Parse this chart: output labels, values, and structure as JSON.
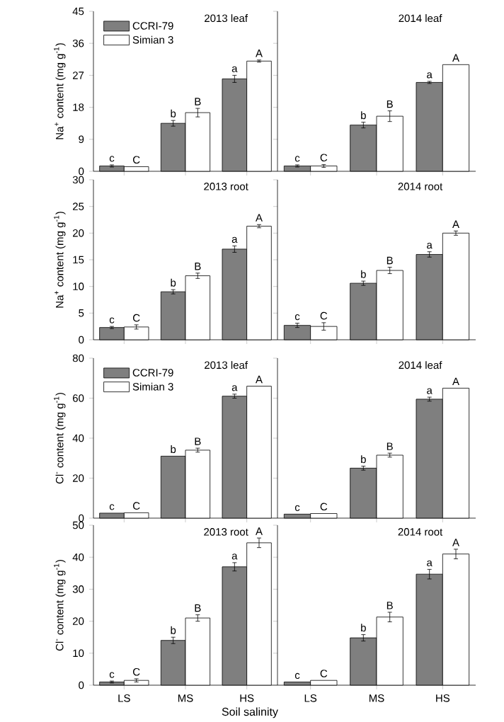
{
  "chart_data": [
    {
      "type": "bar",
      "title": "2013  leaf",
      "ylabel": "Na$^{+}$ content (mg g$^{-1}$)",
      "categories": [
        "LS",
        "MS",
        "HS"
      ],
      "legend": "top left",
      "tick_labels": "y",
      "ylim": [
        0,
        45
      ],
      "yticks": [
        0,
        9,
        18,
        27,
        36,
        45
      ],
      "series": [
        {
          "name": "CCRI-79",
          "color": "#7f7f7f",
          "values": [
            1.5,
            13.5,
            26
          ],
          "errors": [
            0.3,
            0.8,
            1.0
          ]
        },
        {
          "name": "Simian 3",
          "color": "#ffffff",
          "values": [
            1.3,
            16.5,
            31
          ],
          "errors": [
            null,
            1.2,
            0.3
          ]
        }
      ],
      "annotations": [
        {
          "text": "c",
          "x": "LS",
          "y": 1.5
        },
        {
          "text": "C",
          "x": "LS",
          "y": 1.3
        },
        {
          "text": "b",
          "x": "MS",
          "y": 13.5
        },
        {
          "text": "B",
          "x": "MS",
          "y": 16.5
        },
        {
          "text": "a",
          "x": "HS",
          "y": 26
        },
        {
          "text": "A",
          "x": "HS",
          "y": 31
        }
      ]
    },
    {
      "type": "bar",
      "title": "2014  leaf",
      "categories": [
        "LS",
        "MS",
        "HS"
      ],
      "tick_labels": false,
      "ylim": [
        0,
        45
      ],
      "yticks": [
        0,
        9,
        18,
        27,
        36,
        45
      ],
      "series": [
        {
          "color": "#7f7f7f",
          "values": [
            1.5,
            13,
            25
          ],
          "errors": [
            0.3,
            0.8,
            0.3
          ]
        },
        {
          "color": "#ffffff",
          "values": [
            1.5,
            15.5,
            30
          ],
          "errors": [
            0.4,
            1.5,
            null
          ]
        }
      ],
      "annotations": [
        {
          "text": "c",
          "x": "LS",
          "y": 1.5
        },
        {
          "text": "C",
          "x": "LS",
          "y": 1.5
        },
        {
          "text": "b",
          "x": "MS",
          "y": 13
        },
        {
          "text": "B",
          "x": "MS",
          "y": 15.5
        },
        {
          "text": "a",
          "x": "HS",
          "y": 25
        },
        {
          "text": "A",
          "x": "HS",
          "y": 30
        }
      ]
    },
    {
      "type": "bar",
      "title": "2013  root",
      "ylabel": "Na$^{+}$ content (mg g$^{-1}$)",
      "categories": [
        "LS",
        "MS",
        "HS"
      ],
      "tick_labels": "y",
      "ylim": [
        0,
        30
      ],
      "yticks": [
        0,
        5,
        10,
        15,
        20,
        25,
        30
      ],
      "series": [
        {
          "color": "#7f7f7f",
          "values": [
            2.3,
            9,
            17
          ],
          "errors": [
            0.2,
            0.4,
            0.6
          ]
        },
        {
          "color": "#ffffff",
          "values": [
            2.4,
            12,
            21.3
          ],
          "errors": [
            0.4,
            0.5,
            0.3
          ]
        }
      ],
      "annotations": [
        {
          "text": "c",
          "x": "LS",
          "y": 2.3
        },
        {
          "text": "C",
          "x": "LS",
          "y": 2.4
        },
        {
          "text": "b",
          "x": "MS",
          "y": 9
        },
        {
          "text": "B",
          "x": "MS",
          "y": 12
        },
        {
          "text": "a",
          "x": "HS",
          "y": 17
        },
        {
          "text": "A",
          "x": "HS",
          "y": 21.3
        }
      ]
    },
    {
      "type": "bar",
      "title": "2014  root",
      "categories": [
        "LS",
        "MS",
        "HS"
      ],
      "tick_labels": false,
      "ylim": [
        0,
        30
      ],
      "yticks": [
        0,
        5,
        10,
        15,
        20,
        25,
        30
      ],
      "series": [
        {
          "color": "#7f7f7f",
          "values": [
            2.7,
            10.6,
            16
          ],
          "errors": [
            0.4,
            0.4,
            0.5
          ]
        },
        {
          "color": "#ffffff",
          "values": [
            2.5,
            13,
            20
          ],
          "errors": [
            0.7,
            0.6,
            0.4
          ]
        }
      ],
      "annotations": [
        {
          "text": "c",
          "x": "LS",
          "y": 2.7
        },
        {
          "text": "C",
          "x": "LS",
          "y": 2.5
        },
        {
          "text": "b",
          "x": "MS",
          "y": 10.6
        },
        {
          "text": "B",
          "x": "MS",
          "y": 13
        },
        {
          "text": "a",
          "x": "HS",
          "y": 16
        },
        {
          "text": "A",
          "x": "HS",
          "y": 20
        }
      ]
    },
    {
      "type": "bar",
      "title": "2013  leaf",
      "ylabel": "Cl$^{-}$ content (mg g$^{-1}$)",
      "categories": [
        "LS",
        "MS",
        "HS"
      ],
      "legend": "top left",
      "tick_labels": "y",
      "ylim": [
        0,
        80
      ],
      "yticks": [
        0,
        20,
        40,
        60,
        80
      ],
      "series": [
        {
          "name": "CCRI-79",
          "color": "#7f7f7f",
          "values": [
            2.5,
            31,
            61
          ],
          "errors": [
            null,
            null,
            1
          ]
        },
        {
          "name": "Simian 3",
          "color": "#ffffff",
          "values": [
            2.7,
            34,
            66
          ],
          "errors": [
            null,
            1,
            null
          ]
        }
      ],
      "annotations": [
        {
          "text": "c",
          "x": "LS",
          "y": 2.5
        },
        {
          "text": "C",
          "x": "LS",
          "y": 2.7
        },
        {
          "text": "b",
          "x": "MS",
          "y": 31
        },
        {
          "text": "B",
          "x": "MS",
          "y": 34
        },
        {
          "text": "a",
          "x": "HS",
          "y": 61
        },
        {
          "text": "A",
          "x": "HS",
          "y": 66
        }
      ]
    },
    {
      "type": "bar",
      "title": "2014  leaf",
      "categories": [
        "LS",
        "MS",
        "HS"
      ],
      "tick_labels": false,
      "ylim": [
        0,
        80
      ],
      "yticks": [
        0,
        20,
        40,
        60,
        80
      ],
      "series": [
        {
          "color": "#7f7f7f",
          "values": [
            2,
            25,
            59.5
          ],
          "errors": [
            null,
            1,
            1
          ]
        },
        {
          "color": "#ffffff",
          "values": [
            2.3,
            31.5,
            65
          ],
          "errors": [
            null,
            1,
            null
          ]
        }
      ],
      "annotations": [
        {
          "text": "c",
          "x": "LS",
          "y": 2
        },
        {
          "text": "C",
          "x": "LS",
          "y": 2.3
        },
        {
          "text": "b",
          "x": "MS",
          "y": 25
        },
        {
          "text": "B",
          "x": "MS",
          "y": 31.5
        },
        {
          "text": "a",
          "x": "HS",
          "y": 59.5
        },
        {
          "text": "A",
          "x": "HS",
          "y": 65
        }
      ]
    },
    {
      "type": "bar",
      "title": "2013  root",
      "ylabel": "Cl$^{-}$ content (mg g$^{-1}$)",
      "xlabel": "Soil salinity",
      "categories": [
        "LS",
        "MS",
        "HS"
      ],
      "ylim": [
        0,
        50
      ],
      "yticks": [
        0,
        10,
        20,
        30,
        40,
        50
      ],
      "series": [
        {
          "color": "#7f7f7f",
          "values": [
            1,
            14,
            37
          ],
          "errors": [
            0.3,
            1,
            1.3
          ]
        },
        {
          "color": "#ffffff",
          "values": [
            1.5,
            21,
            44.5
          ],
          "errors": [
            0.5,
            1,
            1.5
          ]
        }
      ],
      "annotations": [
        {
          "text": "c",
          "x": "LS",
          "y": 1
        },
        {
          "text": "C",
          "x": "LS",
          "y": 1.5
        },
        {
          "text": "b",
          "x": "MS",
          "y": 14
        },
        {
          "text": "B",
          "x": "MS",
          "y": 21
        },
        {
          "text": "a",
          "x": "HS",
          "y": 37
        },
        {
          "text": "A",
          "x": "HS",
          "y": 44.5
        }
      ]
    },
    {
      "type": "bar",
      "title": "2014  root",
      "categories": [
        "LS",
        "MS",
        "HS"
      ],
      "tick_labels": "x",
      "ylim": [
        0,
        50
      ],
      "yticks": [
        0,
        10,
        20,
        30,
        40,
        50
      ],
      "series": [
        {
          "color": "#7f7f7f",
          "values": [
            1,
            14.8,
            34.7
          ],
          "errors": [
            null,
            1,
            1.5
          ]
        },
        {
          "color": "#ffffff",
          "values": [
            1.5,
            21.3,
            41
          ],
          "errors": [
            null,
            1.5,
            1.5
          ]
        }
      ],
      "annotations": [
        {
          "text": "c",
          "x": "LS",
          "y": 1
        },
        {
          "text": "C",
          "x": "LS",
          "y": 1.5
        },
        {
          "text": "b",
          "x": "MS",
          "y": 14.8
        },
        {
          "text": "B",
          "x": "MS",
          "y": 21.3
        },
        {
          "text": "a",
          "x": "HS",
          "y": 34.7
        },
        {
          "text": "A",
          "x": "HS",
          "y": 41
        }
      ]
    }
  ]
}
